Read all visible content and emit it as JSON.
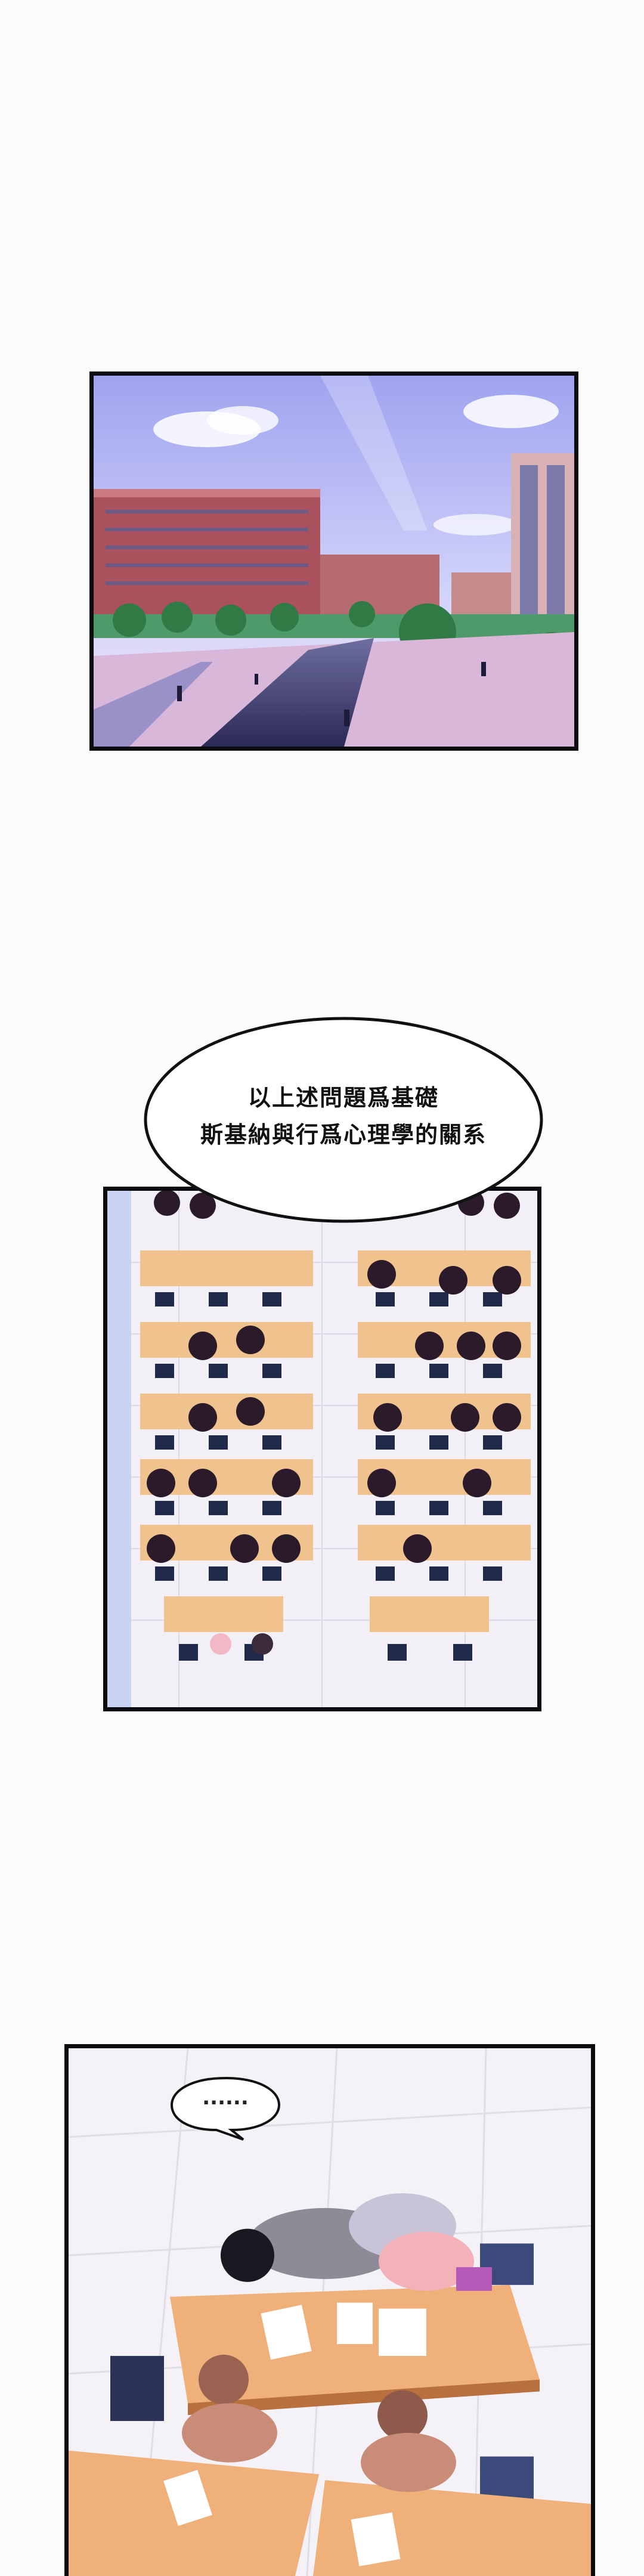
{
  "speech_bubble": {
    "line1": "以上述問題爲基礎",
    "line2": "斯基納與行爲心理學的關系"
  },
  "small_bubble": {
    "text": "......"
  },
  "colors": {
    "sky": "#b8b6f2",
    "building_red": "#a14a55",
    "floor": "#f1eef6",
    "desk": "#f0c38e",
    "chair": "#1f2a4a",
    "student_silhouette": "#2a1a2a",
    "panel_border": "#0c0c10"
  }
}
